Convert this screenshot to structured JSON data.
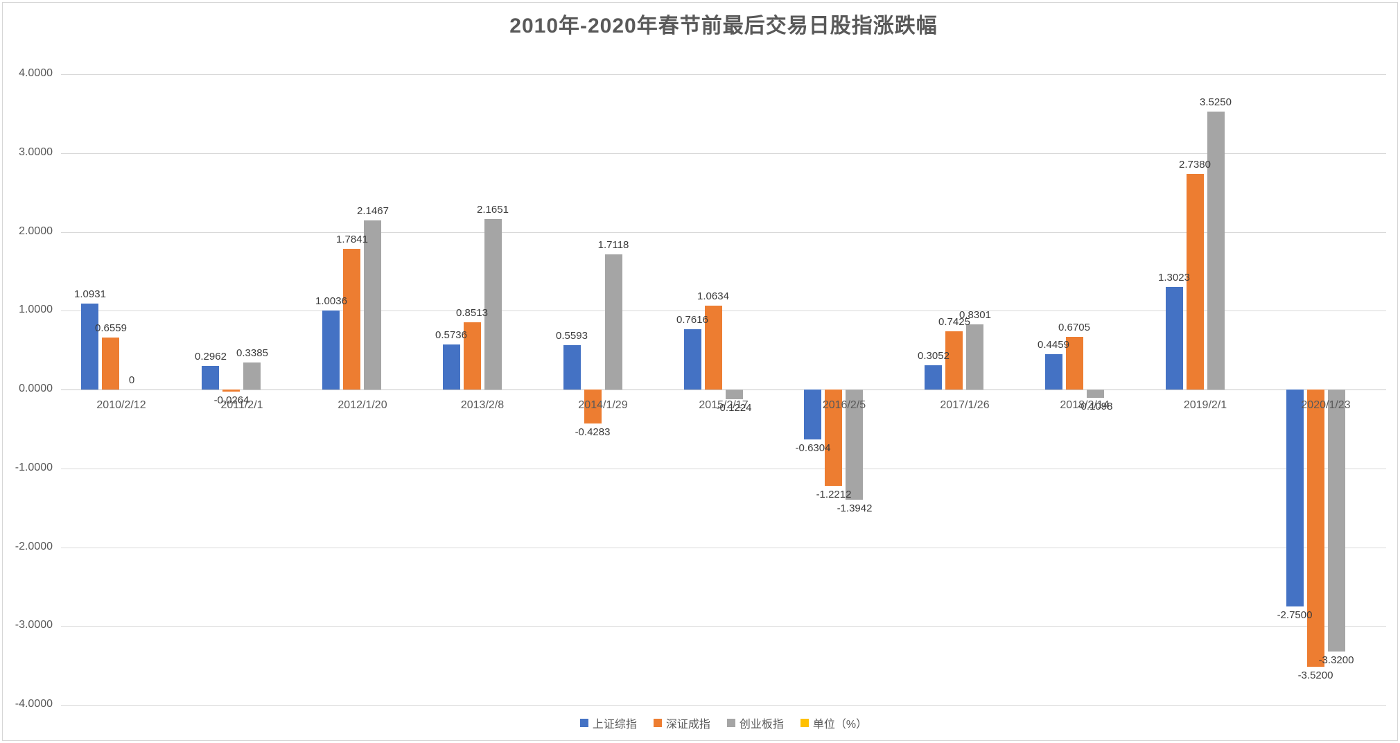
{
  "title": "2010年-2020年春节前最后交易日股指涨跌幅",
  "chart_data": {
    "type": "bar",
    "title": "2010年-2020年春节前最后交易日股指涨跌幅",
    "categories": [
      "2010/2/12",
      "2011/2/1",
      "2012/1/20",
      "2013/2/8",
      "2014/1/29",
      "2015/2/17",
      "2016/2/5",
      "2017/1/26",
      "2018/2/14",
      "2019/2/1",
      "2020/1/23"
    ],
    "series": [
      {
        "name": "上证综指",
        "color": "#4472C4",
        "values": [
          1.0931,
          0.2962,
          1.0036,
          0.5736,
          0.5593,
          0.7616,
          -0.6304,
          0.3052,
          0.4459,
          1.3023,
          -2.75
        ]
      },
      {
        "name": "深证成指",
        "color": "#ED7D31",
        "values": [
          0.6559,
          -0.0264,
          1.7841,
          0.8513,
          -0.4283,
          1.0634,
          -1.2212,
          0.7425,
          0.6705,
          2.738,
          -3.52
        ]
      },
      {
        "name": "创业板指",
        "color": "#A5A5A5",
        "values": [
          0,
          0.3385,
          2.1467,
          2.1651,
          1.7118,
          -0.1224,
          -1.3942,
          0.8301,
          -0.1098,
          3.525,
          -3.32
        ]
      },
      {
        "name": "单位（%）",
        "color": "#FFC000",
        "values": [
          null,
          null,
          null,
          null,
          null,
          null,
          null,
          null,
          null,
          null,
          null
        ]
      }
    ],
    "ylim": [
      -4,
      4
    ],
    "ytick_step": 1,
    "ytick_decimals": 4,
    "data_label_decimals": 4,
    "grid": true,
    "legend_position": "bottom",
    "colors": {
      "grid": "#d9d9d9",
      "axis_text": "#595959",
      "data_label_text": "#3b3b3b",
      "title_text": "#595959"
    }
  }
}
